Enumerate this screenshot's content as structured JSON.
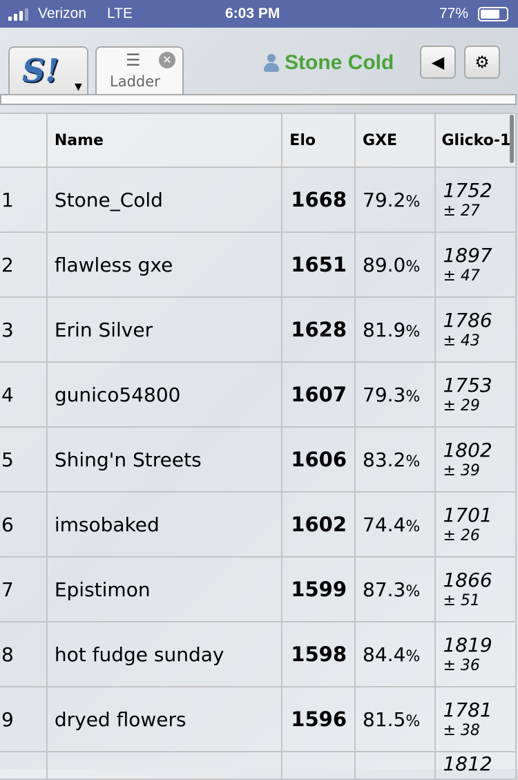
{
  "status_bar": {
    "carrier": "Verizon",
    "network": "LTE",
    "time": "6:03 PM",
    "battery": "77%",
    "battery_level": 0.77
  },
  "header": {
    "logo_text": "S!",
    "tab_label": "Ladder",
    "username": "Stone Cold",
    "user_color": "#4ca33a"
  },
  "table": {
    "columns": [
      "",
      "Name",
      "Elo",
      "GXE",
      "Glicko-1"
    ],
    "rows": [
      {
        "rank": "1",
        "name": "Stone_Cold",
        "elo": "1668",
        "gxe": "79.2",
        "glicko": "1752",
        "dev": "± 27"
      },
      {
        "rank": "2",
        "name": "flawless gxe",
        "elo": "1651",
        "gxe": "89.0",
        "glicko": "1897",
        "dev": "± 47"
      },
      {
        "rank": "3",
        "name": "Erin Silver",
        "elo": "1628",
        "gxe": "81.9",
        "glicko": "1786",
        "dev": "± 43"
      },
      {
        "rank": "4",
        "name": "gunico54800",
        "elo": "1607",
        "gxe": "79.3",
        "glicko": "1753",
        "dev": "± 29"
      },
      {
        "rank": "5",
        "name": "Shing'n Streets",
        "elo": "1606",
        "gxe": "83.2",
        "glicko": "1802",
        "dev": "± 39"
      },
      {
        "rank": "6",
        "name": "imsobaked",
        "elo": "1602",
        "gxe": "74.4",
        "glicko": "1701",
        "dev": "± 26"
      },
      {
        "rank": "7",
        "name": "Epistimon",
        "elo": "1599",
        "gxe": "87.3",
        "glicko": "1866",
        "dev": "± 51"
      },
      {
        "rank": "8",
        "name": "hot fudge sunday",
        "elo": "1598",
        "gxe": "84.4",
        "glicko": "1819",
        "dev": "± 36"
      },
      {
        "rank": "9",
        "name": "dryed flowers",
        "elo": "1596",
        "gxe": "81.5",
        "glicko": "1781",
        "dev": "± 38"
      },
      {
        "rank": "",
        "name": "",
        "elo": "",
        "gxe": "",
        "glicko": "1812",
        "dev": ""
      }
    ],
    "percent_sign": "%"
  }
}
